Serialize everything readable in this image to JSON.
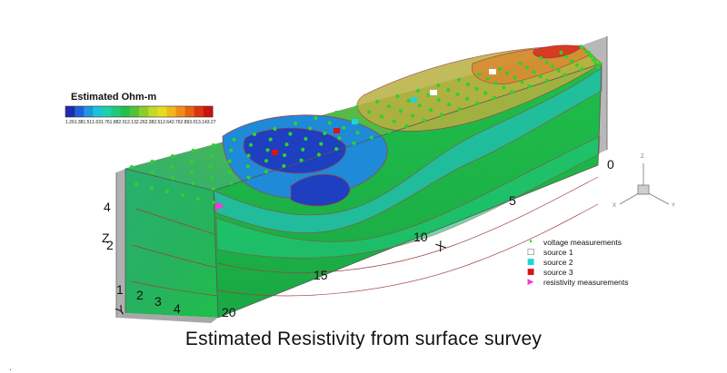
{
  "figure": {
    "caption": "Estimated Resistivity from surface survey"
  },
  "chart_data": {
    "type": "heatmap",
    "title": "",
    "colorbar": {
      "title": "Estimated Ohm-m",
      "ticks": [
        "1.26",
        "1.38",
        "1.51",
        "1.63",
        "1.76",
        "1.88",
        "2.01",
        "2.13",
        "2.26",
        "2.38",
        "2.51",
        "2.64",
        "2.76",
        "2.89",
        "3.01",
        "3.14",
        "3.27"
      ],
      "colors": [
        "#1e2bb0",
        "#1f5fd8",
        "#1e96e0",
        "#1dc2d8",
        "#1fcfa8",
        "#1fc87a",
        "#27be4e",
        "#52c23a",
        "#8ccd2b",
        "#c4d826",
        "#e8da22",
        "#f0b81e",
        "#ee8c1a",
        "#e66016",
        "#d83412",
        "#c8140e"
      ]
    },
    "axes": {
      "x": {
        "label": "X",
        "ticks": [
          "0",
          "5",
          "10",
          "15",
          "20"
        ],
        "range": [
          0,
          20
        ]
      },
      "y": {
        "label": "Y",
        "ticks": [
          "1",
          "2",
          "3",
          "4"
        ],
        "range": [
          0,
          5
        ]
      },
      "z": {
        "label": "Z",
        "ticks": [
          "2",
          "4"
        ],
        "range": [
          0,
          5
        ]
      }
    },
    "orientation_triad": {
      "labels": [
        "Z",
        "X",
        "Y"
      ]
    },
    "legend": [
      {
        "label": "voltage measurements",
        "symbol": "•",
        "color": "#2fd12f"
      },
      {
        "label": "source 1",
        "symbol": "□",
        "color": "#ffffff"
      },
      {
        "label": "source 2",
        "symbol": "■",
        "color": "#22d3d8"
      },
      {
        "label": "source 3",
        "symbol": "■",
        "color": "#d8141a"
      },
      {
        "label": "resistivity measurements",
        "symbol": "▶",
        "color": "#ff33dd"
      }
    ]
  },
  "extra": {
    "stray_mark": "."
  }
}
